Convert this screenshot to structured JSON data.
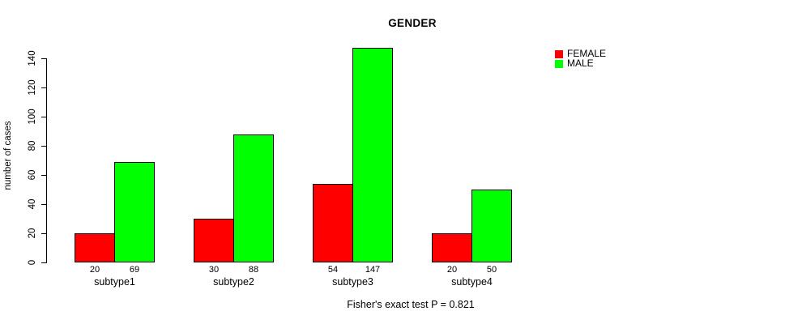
{
  "title": "GENDER",
  "caption": "Fisher's exact test P = 0.821",
  "colors": {
    "female": "#ff0000",
    "male": "#00ff00",
    "axis": "#000000",
    "background": "#ffffff",
    "text": "#000000"
  },
  "legend": {
    "items": [
      {
        "label": "FEMALE",
        "color": "#ff0000"
      },
      {
        "label": "MALE",
        "color": "#00ff00"
      }
    ]
  },
  "chart_data": {
    "type": "bar",
    "title": "GENDER",
    "categories": [
      "subtype1",
      "subtype2",
      "subtype3",
      "subtype4"
    ],
    "series": [
      {
        "name": "FEMALE",
        "color": "#ff0000",
        "values": [
          20,
          30,
          54,
          20
        ]
      },
      {
        "name": "MALE",
        "color": "#00ff00",
        "values": [
          69,
          88,
          147,
          50
        ]
      }
    ],
    "xlabel": "",
    "ylabel": "number of cases",
    "ylim": [
      0,
      140
    ],
    "yticks": [
      0,
      20,
      40,
      60,
      80,
      100,
      120,
      140
    ],
    "grid": false,
    "bar_value_labels": true,
    "legend_position": "top-right",
    "annotation": "Fisher's exact test P = 0.821"
  }
}
